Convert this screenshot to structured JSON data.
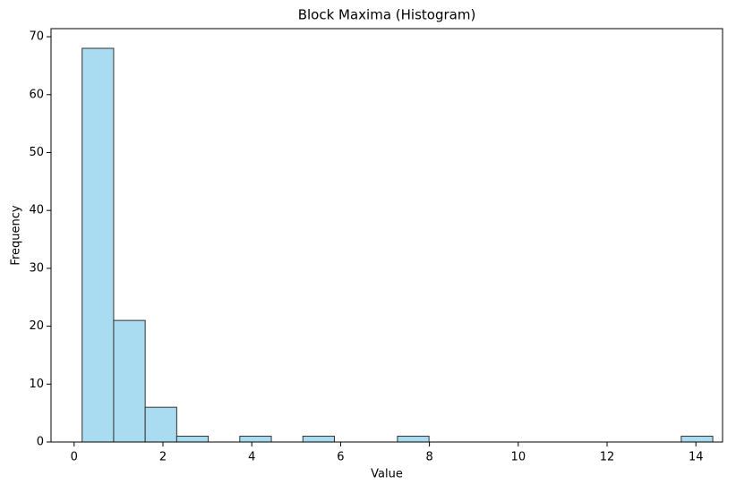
{
  "chart_data": {
    "type": "histogram",
    "title": "Block Maxima (Histogram)",
    "x_label": "Value",
    "y_label": "Frequency",
    "bins": [
      0.18,
      0.89,
      1.6,
      2.31,
      3.02,
      3.73,
      4.44,
      5.15,
      5.86,
      6.57,
      7.28,
      7.99,
      8.7,
      9.41,
      10.12,
      10.83,
      11.54,
      12.25,
      12.96,
      13.67,
      14.38
    ],
    "values": [
      68,
      21,
      6,
      1,
      0,
      1,
      0,
      1,
      0,
      0,
      1,
      0,
      0,
      0,
      0,
      0,
      0,
      0,
      0,
      1
    ],
    "color": "#a9dcf0",
    "edge_color": "#333333",
    "xlim": [
      -0.52,
      14.6
    ],
    "xticks": [
      0,
      2,
      4,
      6,
      8,
      10,
      12,
      14
    ],
    "ylim": [
      0,
      71.4
    ],
    "yticks": [
      0,
      10,
      20,
      30,
      40,
      50,
      60,
      70
    ]
  }
}
